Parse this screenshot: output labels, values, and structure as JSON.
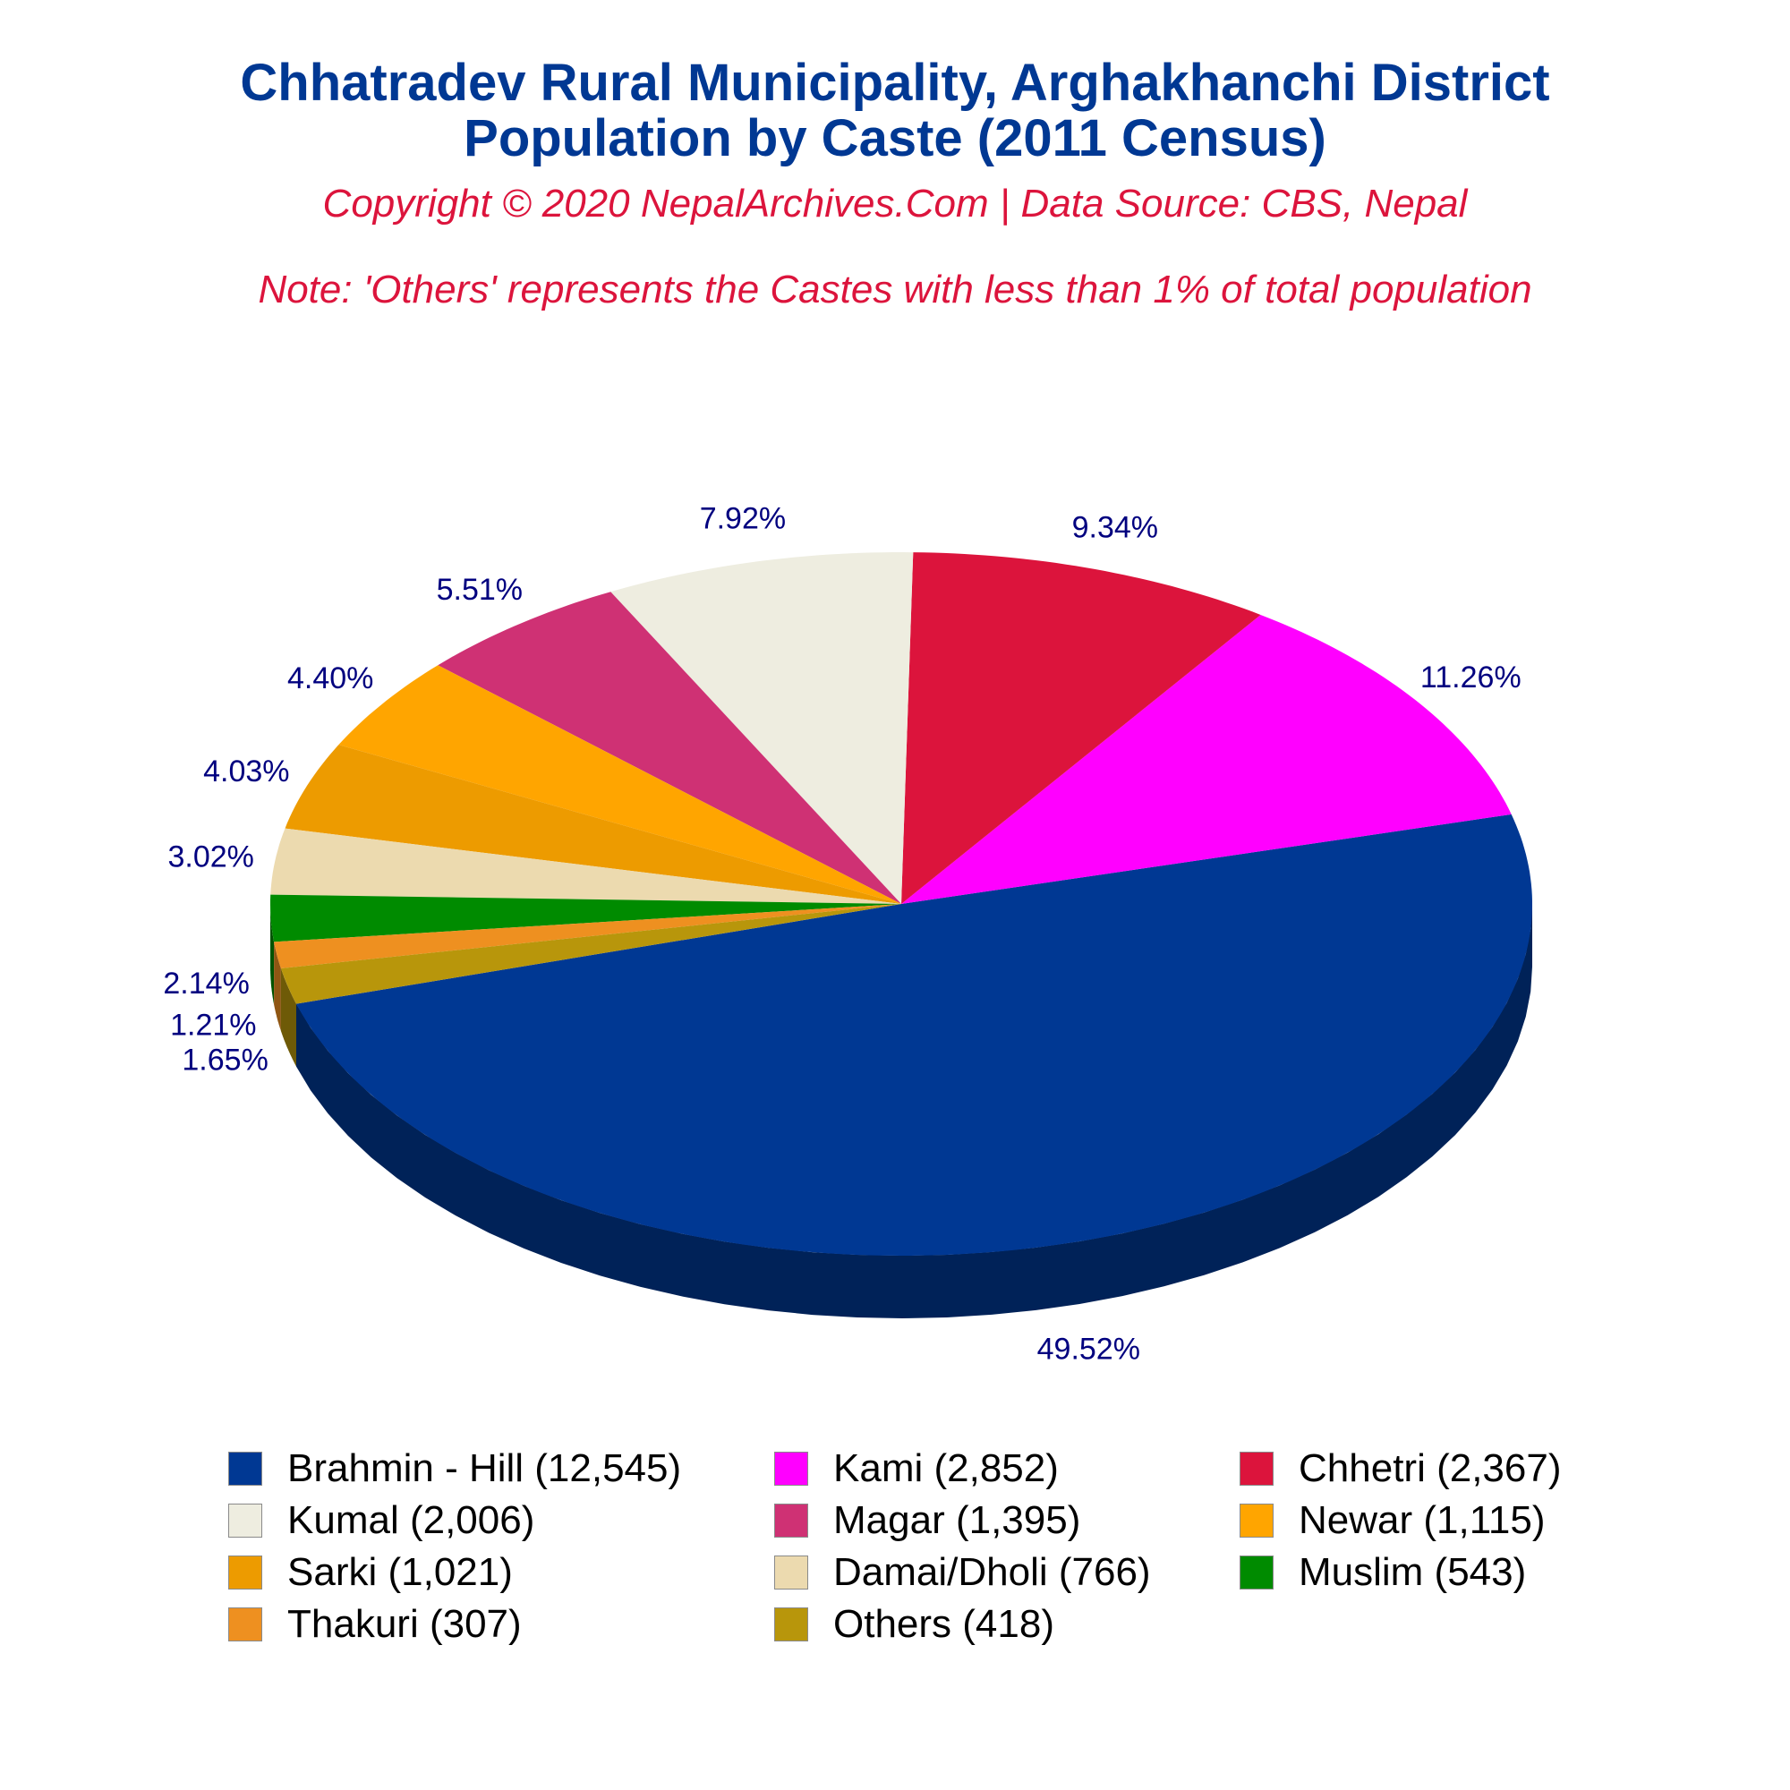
{
  "chart_data": {
    "type": "pie",
    "title": [
      "Chhatradev Rural Municipality, Arghakhanchi District",
      "Population by Caste (2011 Census)"
    ],
    "subtitle": "Copyright © 2020 NepalArchives.Com | Data Source: CBS, Nepal",
    "note": "Note: 'Others' represents the Castes with less than 1% of total population",
    "legend_position": "bottom",
    "slices": [
      {
        "label": "Brahmin - Hill (12,545)",
        "value": 12545,
        "percent_label": "49.52%",
        "color": "#003893"
      },
      {
        "label": "Kami (2,852)",
        "value": 2852,
        "percent_label": "11.26%",
        "color": "#ff00ff"
      },
      {
        "label": "Chhetri (2,367)",
        "value": 2367,
        "percent_label": "9.34%",
        "color": "#dc143c"
      },
      {
        "label": "Kumal (2,006)",
        "value": 2006,
        "percent_label": "7.92%",
        "color": "#eeede0"
      },
      {
        "label": "Magar (1,395)",
        "value": 1395,
        "percent_label": "5.51%",
        "color": "#cf3174"
      },
      {
        "label": "Newar (1,115)",
        "value": 1115,
        "percent_label": "4.40%",
        "color": "#ffa500"
      },
      {
        "label": "Sarki (1,021)",
        "value": 1021,
        "percent_label": "4.03%",
        "color": "#ed9b00"
      },
      {
        "label": "Damai/Dholi (766)",
        "value": 766,
        "percent_label": "3.02%",
        "color": "#ecdaaf"
      },
      {
        "label": "Muslim (543)",
        "value": 543,
        "percent_label": "2.14%",
        "color": "#008b00"
      },
      {
        "label": "Thakuri (307)",
        "value": 307,
        "percent_label": "1.21%",
        "color": "#ee9020"
      },
      {
        "label": "Others (418)",
        "value": 418,
        "percent_label": "1.65%",
        "color": "#b8960b"
      }
    ]
  }
}
